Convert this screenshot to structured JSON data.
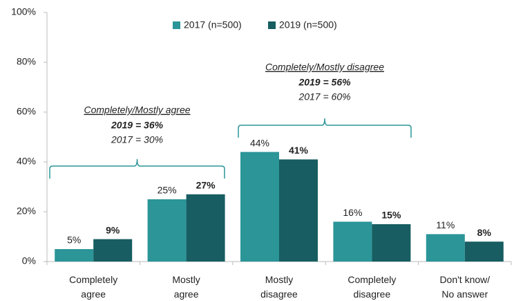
{
  "chart_data": {
    "type": "bar",
    "categories": [
      "Completely\nagree",
      "Mostly\nagree",
      "Mostly\ndisagree",
      "Completely\ndisagree",
      "Don't know/\nNo answer"
    ],
    "series": [
      {
        "name": "2017 (n=500)",
        "color": "#2b9598",
        "values": [
          5,
          25,
          44,
          16,
          11
        ],
        "value_labels": [
          "5%",
          "25%",
          "44%",
          "16%",
          "11%"
        ]
      },
      {
        "name": "2019 (n=500)",
        "color": "#175d61",
        "values": [
          9,
          27,
          41,
          15,
          8
        ],
        "value_labels": [
          "9%",
          "27%",
          "41%",
          "15%",
          "8%"
        ]
      }
    ],
    "ylim": [
      0,
      100
    ],
    "yticks": [
      {
        "value": 0,
        "label": "0%"
      },
      {
        "value": 20,
        "label": "20%"
      },
      {
        "value": 40,
        "label": "40%"
      },
      {
        "value": 60,
        "label": "60%"
      },
      {
        "value": 80,
        "label": "80%"
      },
      {
        "value": 100,
        "label": "100%"
      }
    ],
    "legend": "top",
    "annotations": [
      {
        "title": "Completely/Mostly agree",
        "bold": "2019 = 36%",
        "sub": "2017 = 30%"
      },
      {
        "title": "Completely/Mostly disagree",
        "bold": "2019 = 56%",
        "sub": "2017 = 60%"
      }
    ]
  }
}
